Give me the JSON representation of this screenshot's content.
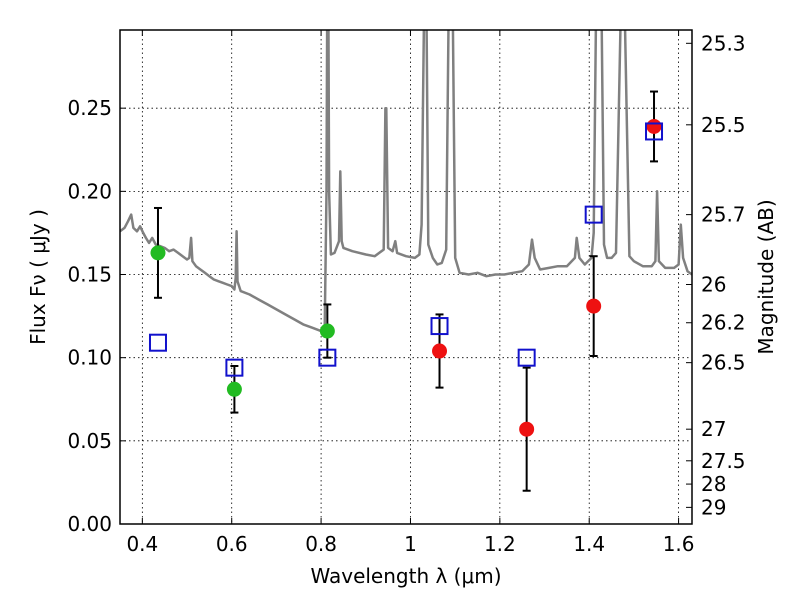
{
  "chart_data": {
    "type": "scatter",
    "xlabel": "Wavelength  λ (μm)",
    "ylabel": "Flux  Fν  ( μJy )",
    "ylabel_right": "Magnitude (AB)",
    "xlim": [
      0.35,
      1.63
    ],
    "ylim": [
      0.0,
      0.297
    ],
    "grid": true,
    "x_ticks": [
      0.4,
      0.6,
      0.8,
      1.0,
      1.2,
      1.4,
      1.6
    ],
    "x_tick_labels": [
      "0.4",
      "0.6",
      "0.8",
      "1",
      "1.2",
      "1.4",
      "1.6"
    ],
    "y_ticks": [
      0.0,
      0.05,
      0.1,
      0.15,
      0.2,
      0.25
    ],
    "y_tick_labels": [
      "0.00",
      "0.05",
      "0.10",
      "0.15",
      "0.20",
      "0.25"
    ],
    "right_ticks": [
      {
        "label": "25.3",
        "flux": 0.289
      },
      {
        "label": "25.5",
        "flux": 0.24
      },
      {
        "label": "25.7",
        "flux": 0.186
      },
      {
        "label": "26",
        "flux": 0.144
      },
      {
        "label": "26.2",
        "flux": 0.121
      },
      {
        "label": "26.5",
        "flux": 0.097
      },
      {
        "label": "27",
        "flux": 0.057
      },
      {
        "label": "27.5",
        "flux": 0.038
      },
      {
        "label": "28",
        "flux": 0.024
      },
      {
        "label": "29",
        "flux": 0.01
      }
    ],
    "series": [
      {
        "marker": "circle",
        "color": "#22bb22",
        "points": [
          {
            "x": 0.435,
            "y": 0.163,
            "err": 0.027
          },
          {
            "x": 0.606,
            "y": 0.081,
            "err": 0.014
          },
          {
            "x": 0.814,
            "y": 0.116,
            "err": 0.016
          }
        ]
      },
      {
        "marker": "circle",
        "color": "#ee1111",
        "points": [
          {
            "x": 1.065,
            "y": 0.104,
            "err": 0.022
          },
          {
            "x": 1.26,
            "y": 0.057,
            "err": 0.037
          },
          {
            "x": 1.41,
            "y": 0.131,
            "err": 0.03
          },
          {
            "x": 1.545,
            "y": 0.239,
            "err": 0.021
          }
        ]
      },
      {
        "marker": "square-open",
        "color": "#1111cc",
        "points": [
          {
            "x": 0.435,
            "y": 0.109
          },
          {
            "x": 0.606,
            "y": 0.094
          },
          {
            "x": 0.814,
            "y": 0.1
          },
          {
            "x": 1.065,
            "y": 0.119
          },
          {
            "x": 1.26,
            "y": 0.1
          },
          {
            "x": 1.41,
            "y": 0.186
          },
          {
            "x": 1.545,
            "y": 0.236
          }
        ]
      },
      {
        "type": "line",
        "color": "#808080",
        "points": [
          [
            0.35,
            0.176
          ],
          [
            0.36,
            0.178
          ],
          [
            0.368,
            0.182
          ],
          [
            0.375,
            0.186
          ],
          [
            0.38,
            0.178
          ],
          [
            0.388,
            0.176
          ],
          [
            0.395,
            0.179
          ],
          [
            0.402,
            0.175
          ],
          [
            0.408,
            0.172
          ],
          [
            0.415,
            0.169
          ],
          [
            0.422,
            0.172
          ],
          [
            0.43,
            0.168
          ],
          [
            0.44,
            0.167
          ],
          [
            0.45,
            0.166
          ],
          [
            0.46,
            0.164
          ],
          [
            0.47,
            0.165
          ],
          [
            0.48,
            0.163
          ],
          [
            0.49,
            0.161
          ],
          [
            0.5,
            0.159
          ],
          [
            0.505,
            0.16
          ],
          [
            0.509,
            0.172
          ],
          [
            0.512,
            0.158
          ],
          [
            0.52,
            0.155
          ],
          [
            0.53,
            0.153
          ],
          [
            0.54,
            0.151
          ],
          [
            0.55,
            0.149
          ],
          [
            0.56,
            0.147
          ],
          [
            0.57,
            0.146
          ],
          [
            0.58,
            0.145
          ],
          [
            0.59,
            0.144
          ],
          [
            0.6,
            0.143
          ],
          [
            0.606,
            0.141
          ],
          [
            0.609,
            0.148
          ],
          [
            0.611,
            0.176
          ],
          [
            0.613,
            0.146
          ],
          [
            0.62,
            0.14
          ],
          [
            0.64,
            0.138
          ],
          [
            0.66,
            0.135
          ],
          [
            0.68,
            0.132
          ],
          [
            0.7,
            0.129
          ],
          [
            0.72,
            0.126
          ],
          [
            0.74,
            0.123
          ],
          [
            0.76,
            0.12
          ],
          [
            0.78,
            0.118
          ],
          [
            0.8,
            0.116
          ],
          [
            0.808,
            0.117
          ],
          [
            0.812,
            0.2
          ],
          [
            0.814,
            0.34
          ],
          [
            0.816,
            0.34
          ],
          [
            0.818,
            0.2
          ],
          [
            0.822,
            0.162
          ],
          [
            0.83,
            0.163
          ],
          [
            0.84,
            0.17
          ],
          [
            0.843,
            0.212
          ],
          [
            0.846,
            0.17
          ],
          [
            0.85,
            0.166
          ],
          [
            0.87,
            0.164
          ],
          [
            0.9,
            0.162
          ],
          [
            0.92,
            0.161
          ],
          [
            0.94,
            0.165
          ],
          [
            0.944,
            0.25
          ],
          [
            0.946,
            0.25
          ],
          [
            0.95,
            0.166
          ],
          [
            0.96,
            0.164
          ],
          [
            0.966,
            0.17
          ],
          [
            0.97,
            0.163
          ],
          [
            0.99,
            0.161
          ],
          [
            1.01,
            0.16
          ],
          [
            1.02,
            0.162
          ],
          [
            1.025,
            0.18
          ],
          [
            1.03,
            0.3
          ],
          [
            1.036,
            0.3
          ],
          [
            1.04,
            0.168
          ],
          [
            1.05,
            0.16
          ],
          [
            1.06,
            0.156
          ],
          [
            1.07,
            0.157
          ],
          [
            1.08,
            0.165
          ],
          [
            1.085,
            0.3
          ],
          [
            1.095,
            0.3
          ],
          [
            1.1,
            0.16
          ],
          [
            1.11,
            0.151
          ],
          [
            1.13,
            0.15
          ],
          [
            1.15,
            0.151
          ],
          [
            1.17,
            0.149
          ],
          [
            1.19,
            0.15
          ],
          [
            1.21,
            0.15
          ],
          [
            1.23,
            0.151
          ],
          [
            1.25,
            0.152
          ],
          [
            1.265,
            0.156
          ],
          [
            1.272,
            0.171
          ],
          [
            1.278,
            0.16
          ],
          [
            1.29,
            0.153
          ],
          [
            1.31,
            0.154
          ],
          [
            1.33,
            0.155
          ],
          [
            1.35,
            0.155
          ],
          [
            1.368,
            0.16
          ],
          [
            1.372,
            0.172
          ],
          [
            1.378,
            0.16
          ],
          [
            1.39,
            0.156
          ],
          [
            1.405,
            0.16
          ],
          [
            1.41,
            0.175
          ],
          [
            1.415,
            0.3
          ],
          [
            1.428,
            0.3
          ],
          [
            1.433,
            0.168
          ],
          [
            1.44,
            0.16
          ],
          [
            1.45,
            0.16
          ],
          [
            1.46,
            0.163
          ],
          [
            1.47,
            0.3
          ],
          [
            1.48,
            0.3
          ],
          [
            1.49,
            0.161
          ],
          [
            1.5,
            0.158
          ],
          [
            1.52,
            0.155
          ],
          [
            1.54,
            0.155
          ],
          [
            1.548,
            0.158
          ],
          [
            1.552,
            0.2
          ],
          [
            1.556,
            0.158
          ],
          [
            1.57,
            0.154
          ],
          [
            1.59,
            0.154
          ],
          [
            1.6,
            0.156
          ],
          [
            1.605,
            0.18
          ],
          [
            1.61,
            0.16
          ],
          [
            1.62,
            0.152
          ],
          [
            1.63,
            0.15
          ]
        ]
      }
    ]
  }
}
